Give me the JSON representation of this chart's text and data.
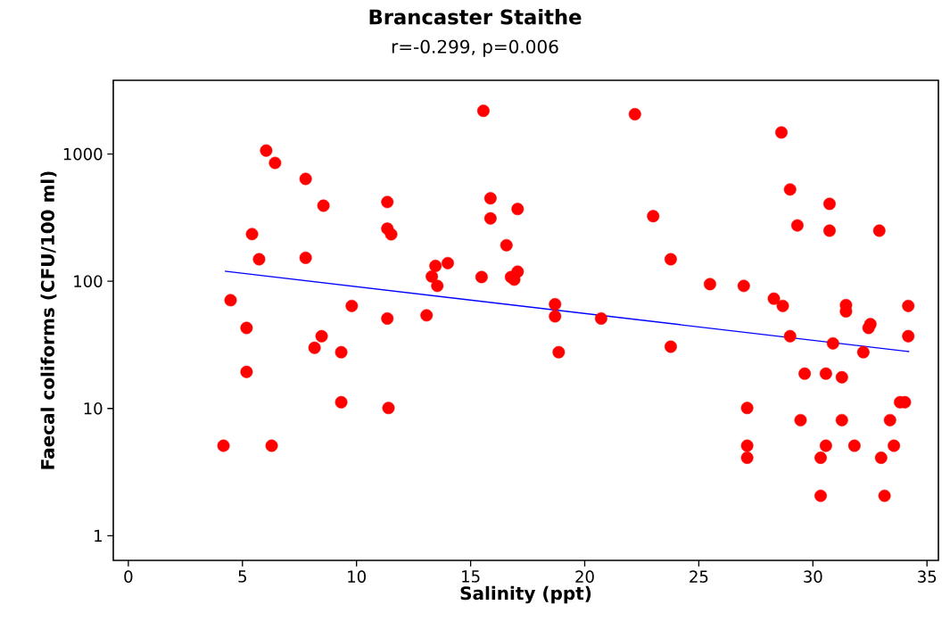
{
  "chart_data": {
    "type": "scatter",
    "title": "Brancaster Staithe",
    "subtitle": "r=-0.299, p=0.006",
    "xlabel": "Salinity (ppt)",
    "ylabel": "Faecal coliforms (CFU/100 ml)",
    "log": "y",
    "xlim": [
      -0.66,
      35.5
    ],
    "ylim": [
      0.64,
      3800
    ],
    "xticks": [
      0,
      5,
      10,
      15,
      20,
      25,
      30,
      35
    ],
    "yticks": [
      1,
      10,
      100,
      1000
    ],
    "marker": "circle",
    "series": [
      {
        "color": "#ff0000",
        "x": [
          6.04,
          6.43,
          7.77,
          8.55,
          11.35,
          5.42,
          11.35,
          11.52,
          5.73,
          7.77,
          4.48,
          9.79,
          11.35,
          5.18,
          8.47,
          8.16,
          9.33,
          5.18,
          9.33,
          11.4,
          4.17,
          6.28,
          15.56,
          22.2,
          15.87,
          17.06,
          23.0,
          15.87,
          16.57,
          13.46,
          14.0,
          13.3,
          13.54,
          15.48,
          16.77,
          17.06,
          16.91,
          13.07,
          18.7,
          18.7,
          20.72,
          18.86,
          28.62,
          29.0,
          30.73,
          29.32,
          30.73,
          32.91,
          23.77,
          25.49,
          26.97,
          28.29,
          28.68,
          31.45,
          31.45,
          34.18,
          32.52,
          32.44,
          23.77,
          29.0,
          30.88,
          32.21,
          34.18,
          29.64,
          30.57,
          31.27,
          27.12,
          33.82,
          34.03,
          29.46,
          31.27,
          33.38,
          27.12,
          30.57,
          31.82,
          33.55,
          27.12,
          30.34,
          32.99,
          30.34,
          33.14
        ],
        "values": [
          1065,
          852,
          638,
          393,
          420,
          235,
          259,
          234,
          149,
          153,
          71,
          64,
          51,
          43,
          37,
          30,
          27.7,
          19.4,
          11.2,
          10.1,
          5.1,
          5.1,
          2187,
          2056,
          449,
          370,
          325,
          312,
          192,
          132,
          139,
          109,
          92,
          108,
          108,
          119,
          103,
          54,
          66,
          53,
          51,
          27.7,
          1479,
          527,
          406,
          275,
          250,
          250,
          149,
          95,
          92,
          73,
          64,
          65,
          58,
          64,
          46,
          43,
          30.6,
          37,
          32.5,
          27.7,
          37,
          18.8,
          18.8,
          17.6,
          10.1,
          11.2,
          11.2,
          8.1,
          8.1,
          8.1,
          5.1,
          5.1,
          5.1,
          5.1,
          4.1,
          4.1,
          4.1,
          2.06,
          2.06
        ]
      },
      {
        "type": "line",
        "color": "#0000ff",
        "marker": "none",
        "x": [
          4.23,
          34.22
        ],
        "values": [
          120,
          28
        ]
      }
    ]
  }
}
